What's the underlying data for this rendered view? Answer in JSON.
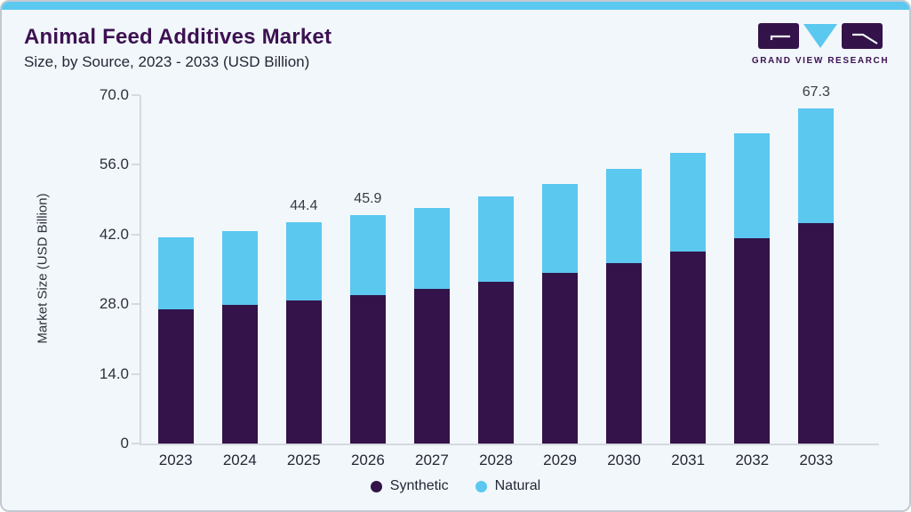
{
  "header": {
    "title": "Animal Feed Additives Market",
    "subtitle": "Size, by Source, 2023 - 2033 (USD Billion)"
  },
  "logo": {
    "wordmark": "GRAND VIEW RESEARCH"
  },
  "colors": {
    "accent_blue": "#5BC8F0",
    "synthetic_purple": "#331349",
    "natural_blue": "#5BC8F0",
    "title_purple": "#3D1152",
    "card_background": "#F1F7FA",
    "axis_grey": "#D6D9DE",
    "text_dark": "#2F2F3C"
  },
  "chart_data": {
    "type": "bar",
    "stacked": true,
    "title": "Animal Feed Additives Market Size, by Source, 2023 - 2033 (USD Billion)",
    "xlabel": "",
    "ylabel": "Market Size (USD Billion)",
    "ylim": [
      0,
      70
    ],
    "grid": false,
    "legend_position": "bottom-center",
    "yticks": [
      {
        "value": 0,
        "label": "0"
      },
      {
        "value": 14,
        "label": "14.0"
      },
      {
        "value": 28,
        "label": "28.0"
      },
      {
        "value": 42,
        "label": "42.0"
      },
      {
        "value": 56,
        "label": "56.0"
      },
      {
        "value": 70,
        "label": "70.0"
      }
    ],
    "categories": [
      "2023",
      "2024",
      "2025",
      "2026",
      "2027",
      "2028",
      "2029",
      "2030",
      "2031",
      "2032",
      "2033"
    ],
    "series": [
      {
        "name": "Synthetic",
        "color": "#331349",
        "values": [
          27.0,
          27.8,
          28.7,
          29.8,
          31.0,
          32.5,
          34.3,
          36.2,
          38.6,
          41.3,
          44.3
        ]
      },
      {
        "name": "Natural",
        "color": "#5BC8F0",
        "values": [
          14.5,
          14.9,
          15.7,
          16.1,
          16.4,
          17.1,
          17.8,
          19.0,
          19.8,
          21.1,
          23.0
        ]
      }
    ],
    "totals": [
      41.5,
      42.7,
      44.4,
      45.9,
      47.4,
      49.6,
      52.1,
      55.2,
      58.4,
      62.4,
      67.3
    ],
    "annotations": [
      {
        "category": "2025",
        "text": "44.4"
      },
      {
        "category": "2026",
        "text": "45.9"
      },
      {
        "category": "2033",
        "text": "67.3"
      }
    ]
  },
  "legend": {
    "items": [
      {
        "label": "Synthetic",
        "color": "#331349"
      },
      {
        "label": "Natural",
        "color": "#5BC8F0"
      }
    ]
  }
}
